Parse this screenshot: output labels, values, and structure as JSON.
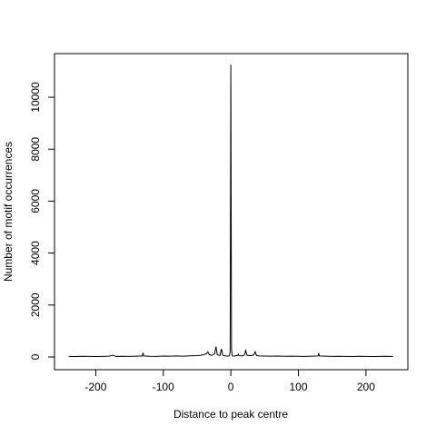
{
  "chart_data": {
    "type": "line",
    "x_label": "Distance to peak centre",
    "y_label": "Number of motif occurrences",
    "x": [
      -240,
      -230,
      -220,
      -210,
      -200,
      -190,
      -180,
      -175,
      -170,
      -160,
      -150,
      -140,
      -131,
      -130,
      -129,
      -120,
      -110,
      -100,
      -90,
      -80,
      -70,
      -60,
      -50,
      -45,
      -40,
      -36,
      -34,
      -32,
      -28,
      -24,
      -22,
      -20,
      -16,
      -14,
      -12,
      -8,
      -4,
      -2,
      -1,
      0,
      1,
      2,
      4,
      8,
      10,
      11,
      12,
      16,
      20,
      22,
      24,
      30,
      34,
      36,
      38,
      42,
      50,
      60,
      70,
      80,
      90,
      100,
      110,
      120,
      129,
      130,
      131,
      140,
      150,
      160,
      170,
      180,
      190,
      200,
      210,
      220,
      230,
      240
    ],
    "values": [
      20,
      15,
      25,
      20,
      15,
      20,
      30,
      70,
      20,
      25,
      20,
      30,
      40,
      160,
      40,
      25,
      20,
      35,
      30,
      40,
      30,
      45,
      50,
      60,
      90,
      120,
      200,
      90,
      60,
      120,
      400,
      80,
      60,
      310,
      70,
      40,
      30,
      60,
      200,
      11250,
      300,
      60,
      30,
      50,
      60,
      110,
      50,
      40,
      70,
      250,
      60,
      50,
      80,
      200,
      60,
      40,
      35,
      30,
      35,
      25,
      30,
      25,
      20,
      30,
      40,
      150,
      40,
      30,
      20,
      25,
      20,
      15,
      25,
      20,
      15,
      20,
      25,
      15
    ],
    "color": "#000000",
    "xlim": [
      -261,
      262
    ],
    "ylim": [
      -490,
      11680
    ],
    "xticks": [
      -200,
      -100,
      0,
      100,
      200
    ],
    "yticks": [
      0,
      2000,
      4000,
      6000,
      8000,
      10000
    ]
  }
}
